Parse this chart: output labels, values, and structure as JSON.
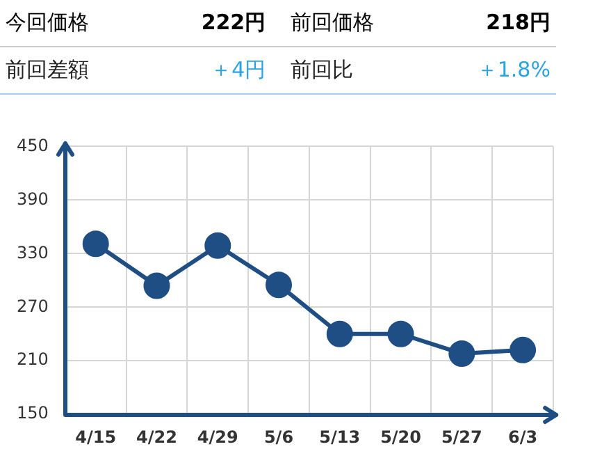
{
  "chart_data": [
    {
      "type": "other",
      "annotations": [
        "今回価格",
        "222円",
        "前回価格",
        "218円",
        "前回差額",
        "＋4円",
        "前回比",
        "＋1.8%"
      ]
    },
    {
      "type": "line",
      "categories": [
        "4/15",
        "4/22",
        "4/29",
        "5/6",
        "5/13",
        "5/20",
        "5/27",
        "6/3"
      ],
      "series": [
        {
          "color": "#1f4e85",
          "values": [
            341,
            294,
            339,
            295,
            240,
            240,
            218,
            222
          ]
        }
      ],
      "ylim": [
        150,
        450
      ],
      "yticks": [
        150,
        210,
        270,
        330,
        390,
        450
      ],
      "grid": true,
      "legend": false,
      "marker": "circle",
      "line_style": "solid"
    }
  ]
}
